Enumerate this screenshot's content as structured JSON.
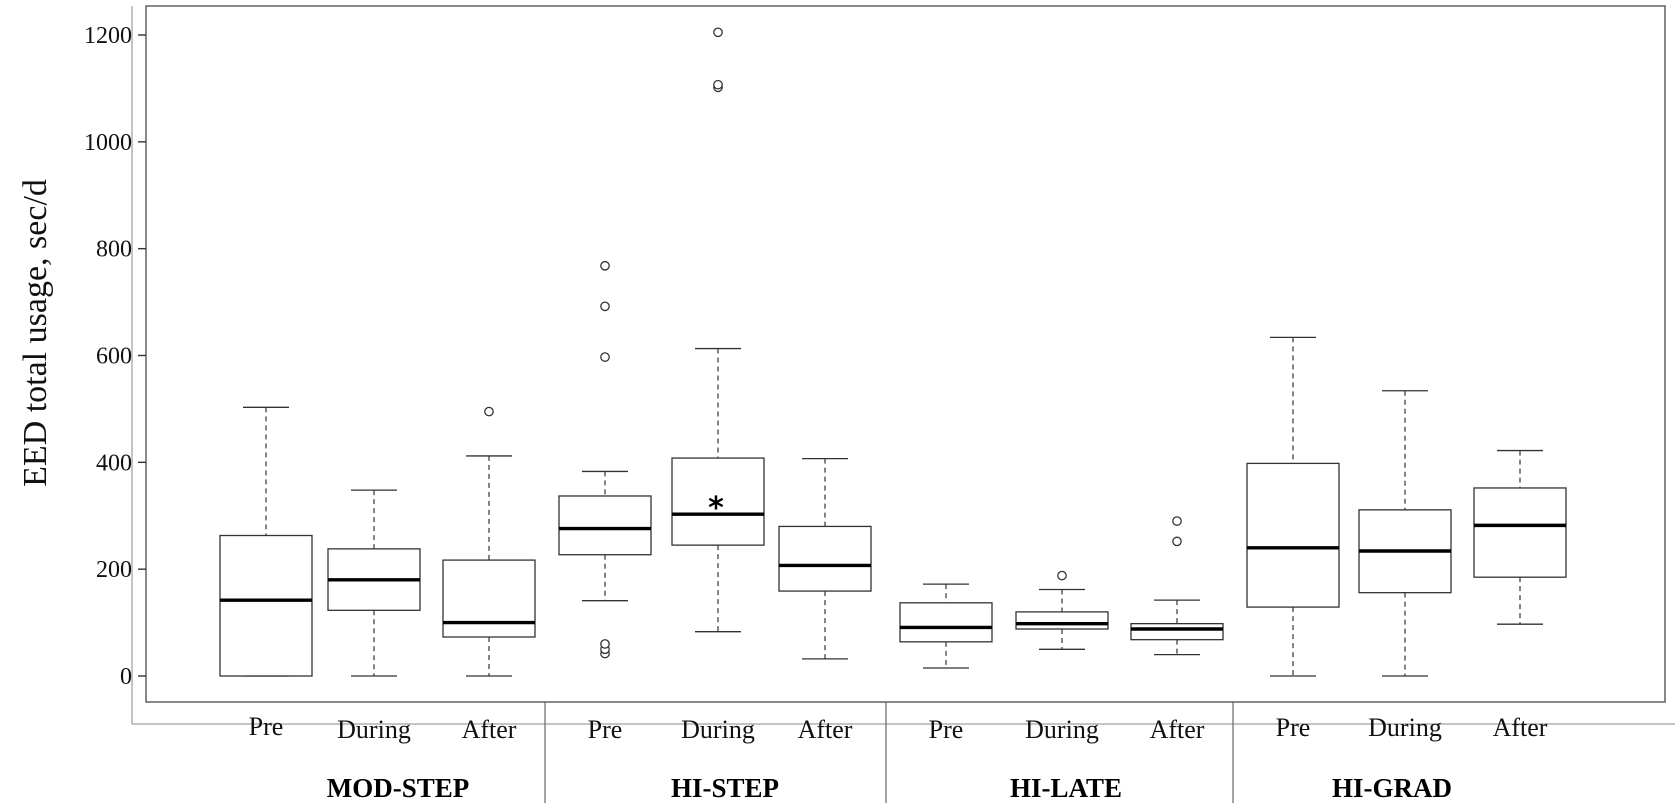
{
  "chart_data": {
    "type": "boxplot",
    "ylabel": "EED total usage, sec/d",
    "xlabel": "",
    "ylim": [
      -50,
      1255
    ],
    "yticks": [
      0,
      200,
      400,
      600,
      800,
      1000,
      1200
    ],
    "grid": false,
    "groups": [
      {
        "name": "MOD-STEP",
        "boxes": [
          {
            "label": "Pre",
            "min": 0,
            "q1": 0,
            "median": 142,
            "q3": 263,
            "max": 503,
            "outliers": [],
            "significant": false
          },
          {
            "label": "During",
            "min": 0,
            "q1": 123,
            "median": 180,
            "q3": 238,
            "max": 348,
            "outliers": [],
            "significant": false
          },
          {
            "label": "After",
            "min": 0,
            "q1": 73,
            "median": 100,
            "q3": 217,
            "max": 412,
            "outliers": [
              495
            ],
            "significant": false
          }
        ]
      },
      {
        "name": "HI-STEP",
        "boxes": [
          {
            "label": "Pre",
            "min": 141,
            "q1": 227,
            "median": 276,
            "q3": 337,
            "max": 383,
            "outliers": [
              42,
              50,
              60,
              597,
              692,
              768
            ],
            "significant": false
          },
          {
            "label": "During",
            "min": 83,
            "q1": 245,
            "median": 303,
            "q3": 408,
            "max": 613,
            "outliers": [
              1102,
              1107,
              1205
            ],
            "significant": true
          },
          {
            "label": "After",
            "min": 32,
            "q1": 159,
            "median": 207,
            "q3": 280,
            "max": 407,
            "outliers": [],
            "significant": false
          }
        ]
      },
      {
        "name": "HI-LATE",
        "boxes": [
          {
            "label": "Pre",
            "min": 15,
            "q1": 64,
            "median": 91,
            "q3": 137,
            "max": 172,
            "outliers": [],
            "significant": false
          },
          {
            "label": "During",
            "min": 50,
            "q1": 88,
            "median": 98,
            "q3": 120,
            "max": 162,
            "outliers": [
              188
            ],
            "significant": false
          },
          {
            "label": "After",
            "min": 40,
            "q1": 68,
            "median": 88,
            "q3": 98,
            "max": 142,
            "outliers": [
              252,
              290
            ],
            "significant": false
          }
        ]
      },
      {
        "name": "HI-GRAD",
        "boxes": [
          {
            "label": "Pre",
            "min": 0,
            "q1": 129,
            "median": 240,
            "q3": 398,
            "max": 634,
            "outliers": [],
            "significant": false
          },
          {
            "label": "During",
            "min": 0,
            "q1": 156,
            "median": 234,
            "q3": 311,
            "max": 534,
            "outliers": [],
            "significant": false
          },
          {
            "label": "After",
            "min": 97,
            "q1": 185,
            "median": 282,
            "q3": 352,
            "max": 422,
            "outliers": [],
            "significant": false
          }
        ]
      }
    ],
    "significance_marker": "*"
  }
}
